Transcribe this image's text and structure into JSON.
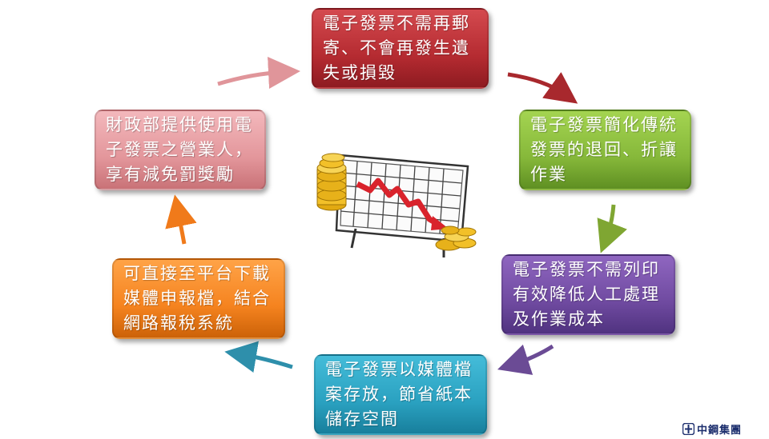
{
  "colors": {
    "red": "#b52b31",
    "green": "#86b83a",
    "purple": "#6f4aa0",
    "blue": "#2aa1c0",
    "orange": "#f5831f",
    "pink": "#e3969b"
  },
  "cycle": [
    {
      "id": "red",
      "lines": [
        "電子發票不需再郵",
        "寄、不會再發生遺",
        "失或損毀"
      ]
    },
    {
      "id": "green",
      "lines": [
        "電子發票簡化傳統",
        "發票的退回、折讓",
        "作業"
      ]
    },
    {
      "id": "purple",
      "lines": [
        "電子發票不需列印",
        "有效降低人工處理",
        "及作業成本"
      ]
    },
    {
      "id": "blue",
      "lines": [
        "電子發票以媒體檔",
        "案存放，節省紙本",
        "儲存空間"
      ]
    },
    {
      "id": "orange",
      "lines": [
        "可直接至平台下載",
        "媒體申報檔，結合",
        "網路報稅系統"
      ]
    },
    {
      "id": "pink",
      "lines": [
        "財政部提供使用電",
        "子發票之營業人，",
        "享有減免罰獎勵"
      ]
    }
  ],
  "center_icon": "falling-cost-chart-with-coins",
  "logo": {
    "icon": "company-logo-icon",
    "text": "中鋼集團"
  }
}
